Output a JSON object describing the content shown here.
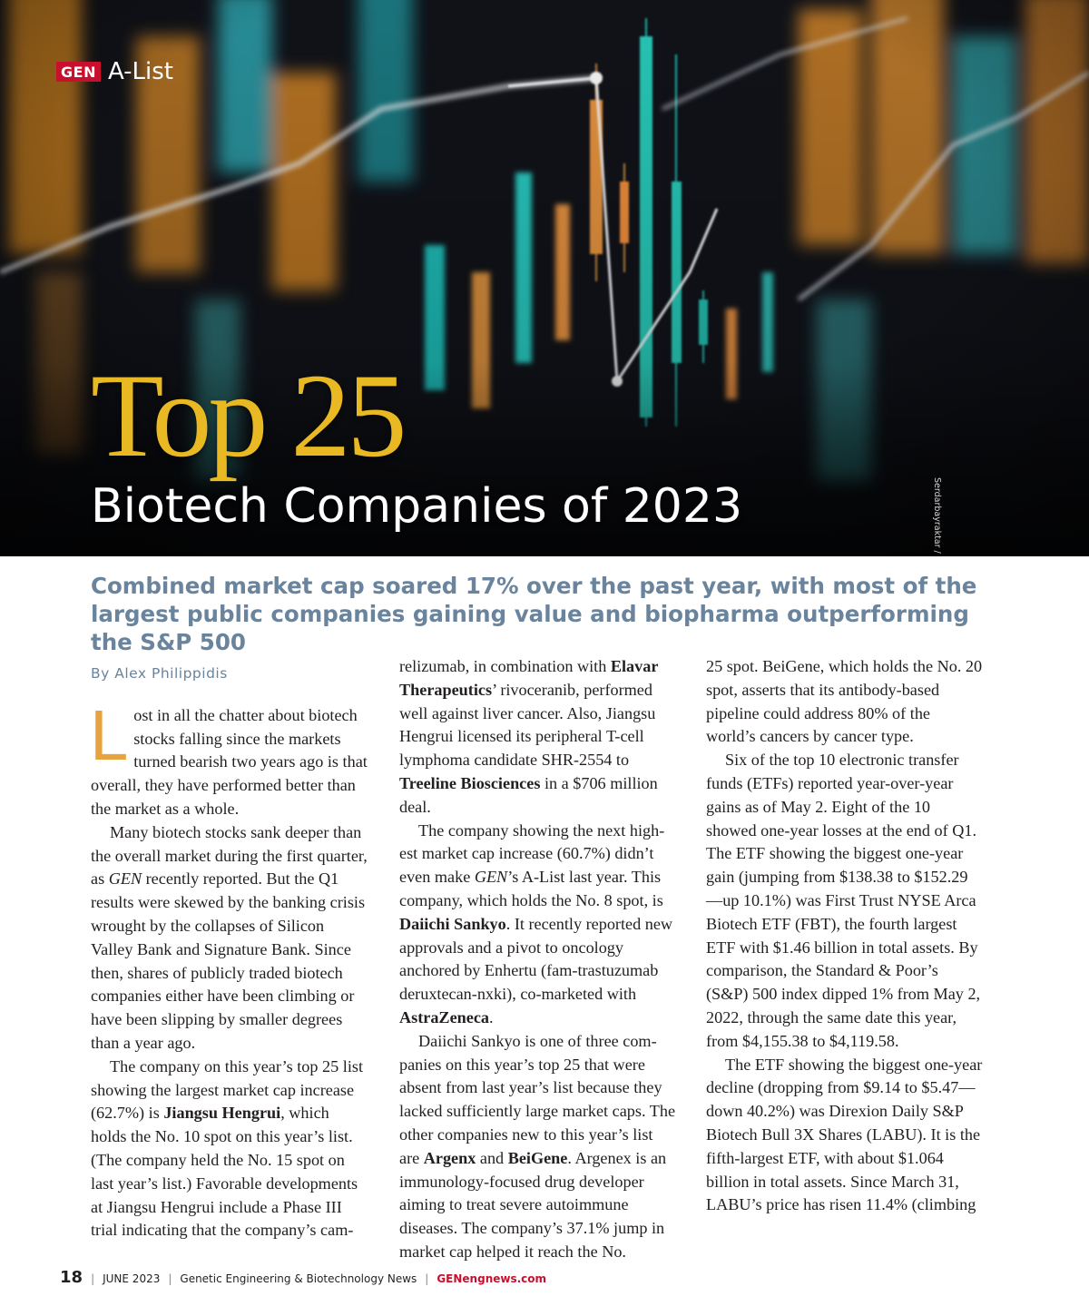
{
  "header": {
    "logo_text": "GEN",
    "section": "A-List",
    "title_main": "Top 25",
    "title_sub": "Biotech Companies of 2023",
    "photo_credit": "Serdarbayraktar / Getty Images",
    "colors": {
      "title_gold": "#e8b922",
      "deck_blue": "#69849c",
      "brand_red": "#c8102e"
    }
  },
  "deck": "Combined market cap soared 17% over the past year, with most of the largest public companies gaining value and biopharma outperforming the S&P 500",
  "byline": "By Alex Philippidis",
  "article": {
    "dropcap": "L",
    "c1": {
      "p1": "ost in all the chatter about bio­tech stocks falling since the mar­kets turned bearish two years ago is that overall, they have performed better than the market as a whole.",
      "p2a": "Many biotech stocks sank deeper than the overall market during the first quarter, as ",
      "p2_em": "GEN",
      "p2b": " recently reported. But the Q1 results were skewed by the banking crisis wrought by the collapses of Silicon Valley Bank and Signature Bank. Since then, shares of publicly traded biotech companies either have been climbing or have been slipping by smaller degrees than a year ago.",
      "p3a": "The company on this year’s top 25 list showing the largest market cap in­crease (62.7%) is ",
      "p3_b1": "Jiangsu Hengrui",
      "p3b": ", which holds the No. 10 spot on this year’s list. (The company held the No. 15 spot on last year’s list.) Favorable developments at Jiangsu Hengrui include a Phase III trial indicating that the company’s cam-"
    },
    "c2": {
      "p1a": "relizumab, in combination with ",
      "p1_b1": "Elavar Therapeutics",
      "p1b": "’ rivoceranib, performed well against liver cancer. Also, Jiangsu Hengrui licensed its peripheral T-cell lym­phoma candidate SHR-2554 to ",
      "p1_b2": "Treeline Biosciences",
      "p1c": " in a $706 million deal.",
      "p2a": "The company showing the next high­est market cap increase (60.7%) didn’t even make ",
      "p2_em": "GEN",
      "p2b": "’s A-List last year. This company, which holds the No. 8 spot, is ",
      "p2_b1": "Daiichi Sankyo",
      "p2c": ". It recently reported new approvals and a pivot to oncology anchored by Enhertu (fam-trastuzumab deruxtecan-nxki), co-marketed with ",
      "p2_b2": "AstraZeneca",
      "p2d": ".",
      "p3a": "Daiichi Sankyo is one of three com­panies on this year’s top 25 that were absent from last year’s list because they lacked sufficiently large market caps. The other companies new to this year’s list are ",
      "p3_b1": "Argenx",
      "p3b": " and ",
      "p3_b2": "BeiGene",
      "p3c": ". Argenex is an immunology-focused drug devel­oper aiming to treat severe autoimmune diseases. The company’s 37.1% jump in market cap helped it reach the No."
    },
    "c3": {
      "p1": "25 spot. BeiGene, which holds the No. 20 spot, asserts that its antibody-based pipeline could address 80% of the world’s cancers by cancer type.",
      "p2": "Six of the top 10 electronic transfer funds (ETFs) reported year-over-year gains as of May 2. Eight of the 10 showed one-year losses at the end of Q1. The ETF showing the biggest one-year gain (jumping from $138.38 to $152.29—up 10.1%) was First Trust NYSE Arca Biotech ETF (FBT), the fourth largest ETF with $1.46 billion in total assets. By comparison, the Stan­dard & Poor’s (S&P) 500 index dipped 1% from May 2, 2022, through the same date this year, from $4,155.38 to $4,119.58.",
      "p3": "The ETF showing the biggest one-year decline (dropping from $9.14 to $5.47—down 40.2%) was Direxion Daily S&P Biotech Bull 3X Shares (LABU). It is the fifth-largest ETF, with about $1.064 billion in total assets. Since March 31, LABU’s price has risen 11.4% (climbing"
    }
  },
  "footer": {
    "page": "18",
    "date": "JUNE 2023",
    "publication": "Genetic Engineering & Biotechnology News",
    "site": "GENengnews.com"
  }
}
